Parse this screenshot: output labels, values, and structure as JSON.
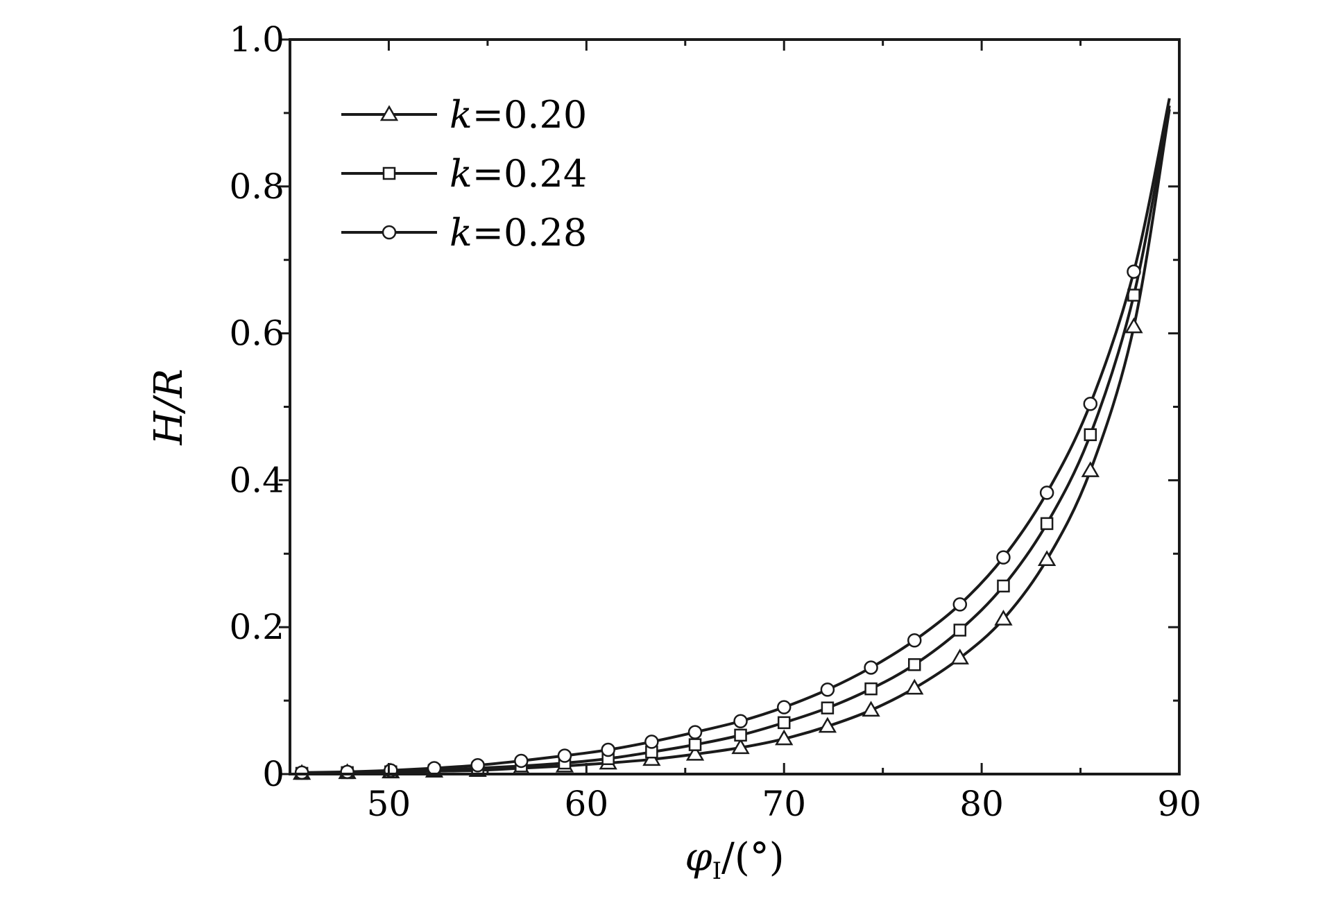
{
  "chart_data": {
    "type": "line",
    "xlabel": {
      "symbol": "φ",
      "subscript": "I",
      "unit": "/(°)"
    },
    "ylabel": {
      "text": "H/R"
    },
    "xlim": [
      45,
      90
    ],
    "ylim": [
      0,
      1.0
    ],
    "xticks": [
      50,
      60,
      70,
      80,
      90
    ],
    "xtick_labels": [
      "50",
      "60",
      "70",
      "80",
      "90"
    ],
    "yticks": [
      0,
      0.2,
      0.4,
      0.6,
      0.8,
      1.0
    ],
    "ytick_labels": [
      "0",
      "0.2",
      "0.4",
      "0.6",
      "0.8",
      "1.0"
    ],
    "grid": false,
    "legend_position": "top-left",
    "line_color": "#1a1a1a",
    "series": [
      {
        "name": "k=0.20",
        "legend_var": "k",
        "legend_val": "=0.20",
        "marker": "triangle",
        "x": [
          45.6,
          47.9,
          50.1,
          52.3,
          54.5,
          56.7,
          58.9,
          61.1,
          63.3,
          65.5,
          67.8,
          70.0,
          72.2,
          74.4,
          76.6,
          78.9,
          81.1,
          83.3,
          85.5,
          87.7
        ],
        "y": [
          0.001,
          0.002,
          0.003,
          0.004,
          0.005,
          0.008,
          0.011,
          0.015,
          0.02,
          0.027,
          0.036,
          0.048,
          0.065,
          0.087,
          0.117,
          0.158,
          0.211,
          0.292,
          0.413,
          0.609
        ]
      },
      {
        "name": "k=0.24",
        "legend_var": "k",
        "legend_val": "=0.24",
        "marker": "square",
        "x": [
          45.6,
          47.9,
          50.1,
          52.3,
          54.5,
          56.7,
          58.9,
          61.1,
          63.3,
          65.5,
          67.8,
          70.0,
          72.2,
          74.4,
          76.6,
          78.9,
          81.1,
          83.3,
          85.5,
          87.7
        ],
        "y": [
          0.001,
          0.002,
          0.003,
          0.005,
          0.008,
          0.011,
          0.015,
          0.021,
          0.03,
          0.04,
          0.053,
          0.07,
          0.09,
          0.116,
          0.149,
          0.196,
          0.256,
          0.341,
          0.462,
          0.652
        ]
      },
      {
        "name": "k=0.28",
        "legend_var": "k",
        "legend_val": "=0.28",
        "marker": "circle",
        "x": [
          45.6,
          47.9,
          50.1,
          52.3,
          54.5,
          56.7,
          58.9,
          61.1,
          63.3,
          65.5,
          67.8,
          70.0,
          72.2,
          74.4,
          76.6,
          78.9,
          81.1,
          83.3,
          85.5,
          87.7
        ],
        "y": [
          0.002,
          0.003,
          0.005,
          0.008,
          0.012,
          0.018,
          0.025,
          0.033,
          0.044,
          0.057,
          0.072,
          0.091,
          0.115,
          0.145,
          0.182,
          0.231,
          0.295,
          0.383,
          0.504,
          0.684
        ]
      }
    ],
    "curve_end": {
      "x": 89.5,
      "y": [
        0.905,
        0.91,
        0.92
      ]
    }
  }
}
